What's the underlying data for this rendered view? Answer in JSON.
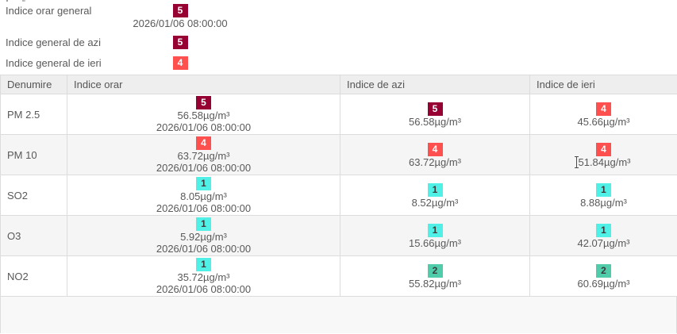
{
  "colors": {
    "index_1": "#50F0E6",
    "index_2": "#50CCAA",
    "index_4": "#FF5050",
    "index_5": "#960032",
    "header_bg": "#eeeeee",
    "alt_row_bg": "#f5f5f5",
    "text": "#595959"
  },
  "summary": {
    "rows": [
      {
        "label": "Indice orar general",
        "index": "5",
        "timestamp": "2026/01/06 08:00:00"
      },
      {
        "label": "Indice general de azi",
        "index": "5"
      },
      {
        "label": "Indice general de ieri",
        "index": "4"
      }
    ]
  },
  "table": {
    "headers": [
      "Denumire",
      "Indice orar",
      "Indice de azi",
      "Indice de ieri"
    ],
    "rows": [
      {
        "name": "PM 2.5",
        "orar": {
          "index": "5",
          "value": "56.58µg/m³",
          "timestamp": "2026/01/06 08:00:00"
        },
        "azi": {
          "index": "5",
          "value": "56.58µg/m³"
        },
        "ieri": {
          "index": "4",
          "value": "45.66µg/m³"
        }
      },
      {
        "name": "PM 10",
        "orar": {
          "index": "4",
          "value": "63.72µg/m³",
          "timestamp": "2026/01/06 08:00:00"
        },
        "azi": {
          "index": "4",
          "value": "63.72µg/m³"
        },
        "ieri": {
          "index": "4",
          "value": "51.84µg/m³"
        }
      },
      {
        "name": "SO2",
        "orar": {
          "index": "1",
          "value": "8.05µg/m³",
          "timestamp": "2026/01/06 08:00:00"
        },
        "azi": {
          "index": "1",
          "value": "8.52µg/m³"
        },
        "ieri": {
          "index": "1",
          "value": "8.88µg/m³"
        }
      },
      {
        "name": "O3",
        "orar": {
          "index": "1",
          "value": "5.92µg/m³",
          "timestamp": "2026/01/06 08:00:00"
        },
        "azi": {
          "index": "1",
          "value": "15.66µg/m³"
        },
        "ieri": {
          "index": "1",
          "value": "42.07µg/m³"
        }
      },
      {
        "name": "NO2",
        "orar": {
          "index": "1",
          "value": "35.72µg/m³",
          "timestamp": "2026/01/06 08:00:00"
        },
        "azi": {
          "index": "2",
          "value": "55.82µg/m³"
        },
        "ieri": {
          "index": "2",
          "value": "60.69µg/m³"
        }
      }
    ]
  }
}
